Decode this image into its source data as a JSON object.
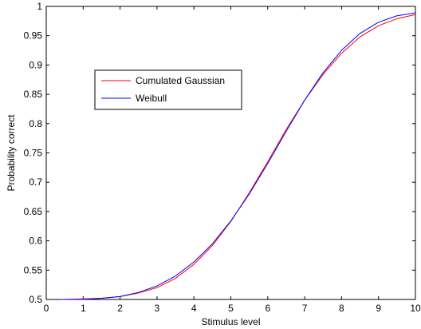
{
  "chart_data": {
    "type": "line",
    "xlabel": "Stimulus level",
    "ylabel": "Probability correct",
    "xlim": [
      0,
      10
    ],
    "ylim": [
      0.5,
      1
    ],
    "xticks": [
      "0",
      "1",
      "2",
      "3",
      "4",
      "5",
      "6",
      "7",
      "8",
      "9",
      "10"
    ],
    "yticks": [
      "0.5",
      "0.55",
      "0.6",
      "0.65",
      "0.7",
      "0.75",
      "0.8",
      "0.85",
      "0.9",
      "0.95",
      "1"
    ],
    "grid": false,
    "legend_position": "upper-left",
    "x": [
      0.4,
      1,
      1.5,
      2,
      2.5,
      3,
      3.5,
      4,
      4.5,
      5,
      5.5,
      6,
      6.5,
      7,
      7.5,
      8,
      8.5,
      9,
      9.5,
      10
    ],
    "series": [
      {
        "name": "Cumulated Gaussian",
        "color": "#ff0000",
        "values": [
          0.5,
          0.501,
          0.502,
          0.505,
          0.511,
          0.52,
          0.536,
          0.56,
          0.592,
          0.633,
          0.682,
          0.735,
          0.79,
          0.84,
          0.884,
          0.92,
          0.948,
          0.967,
          0.979,
          0.986
        ]
      },
      {
        "name": "Weibull",
        "color": "#0000ff",
        "values": [
          0.5,
          0.5,
          0.502,
          0.505,
          0.512,
          0.523,
          0.54,
          0.564,
          0.595,
          0.634,
          0.68,
          0.732,
          0.787,
          0.84,
          0.887,
          0.925,
          0.954,
          0.973,
          0.984,
          0.989
        ]
      }
    ]
  }
}
